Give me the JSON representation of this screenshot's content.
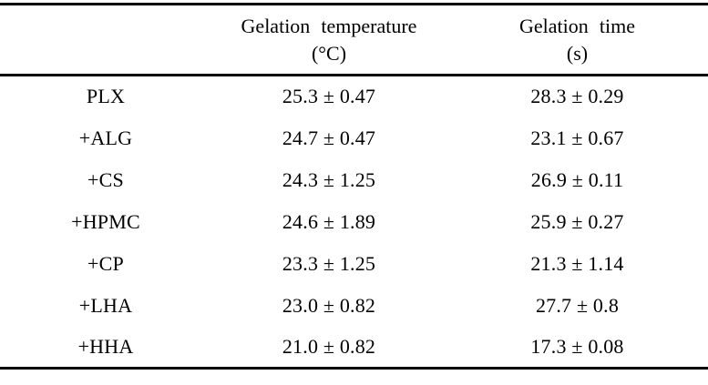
{
  "colors": {
    "background": "#ffffff",
    "text": "#000000",
    "rule": "#000000"
  },
  "table": {
    "header": {
      "row_label_column": "",
      "temperature": {
        "line1": "Gelation temperature",
        "line2": "(°C)"
      },
      "time": {
        "line1": "Gelation time",
        "line2": "(s)"
      }
    },
    "rows": [
      {
        "label": "PLX",
        "temperature": "25.3 ± 0.47",
        "time": "28.3 ± 0.29"
      },
      {
        "label": "+ALG",
        "temperature": "24.7 ± 0.47",
        "time": "23.1 ± 0.67"
      },
      {
        "label": "+CS",
        "temperature": "24.3 ± 1.25",
        "time": "26.9 ± 0.11"
      },
      {
        "label": "+HPMC",
        "temperature": "24.6 ± 1.89",
        "time": "25.9 ± 0.27"
      },
      {
        "label": "+CP",
        "temperature": "23.3 ± 1.25",
        "time": "21.3 ± 1.14"
      },
      {
        "label": "+LHA",
        "temperature": "23.0 ± 0.82",
        "time": "27.7 ± 0.8"
      },
      {
        "label": "+HHA",
        "temperature": "21.0 ± 0.82",
        "time": "17.3 ± 0.08"
      }
    ]
  }
}
